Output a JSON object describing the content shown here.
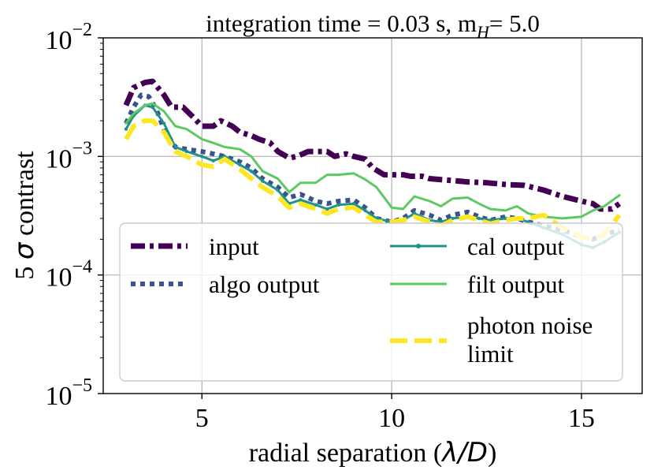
{
  "chart_data": {
    "type": "line",
    "title_main": "integration time = 0.03 s, m",
    "title_sub": "H",
    "title_tail": "= 5.0",
    "xlabel_prefix": "radial separation (",
    "xlabel_math": "λ/D",
    "xlabel_suffix": ")",
    "ylabel_prefix": "5 ",
    "ylabel_math": "σ",
    "ylabel_suffix": " contrast",
    "xlim": [
      2.4,
      16.6
    ],
    "ylim_log10": [
      -5,
      -2
    ],
    "yscale": "log",
    "grid": true,
    "legend_position": "lower-center",
    "x_ticks": [
      {
        "value": 5,
        "label": "5"
      },
      {
        "value": 10,
        "label": "10"
      },
      {
        "value": 15,
        "label": "15"
      }
    ],
    "y_ticks": [
      {
        "exp": -2,
        "base": "10",
        "sup": "−2"
      },
      {
        "exp": -3,
        "base": "10",
        "sup": "−3"
      },
      {
        "exp": -4,
        "base": "10",
        "sup": "−4"
      },
      {
        "exp": -5,
        "base": "10",
        "sup": "−5"
      }
    ],
    "series": [
      {
        "name": "input",
        "color": "#440154",
        "style": "dashdot",
        "width": 7,
        "points": [
          [
            3.0,
            0.0027
          ],
          [
            3.2,
            0.0038
          ],
          [
            3.5,
            0.0042
          ],
          [
            3.7,
            0.0043
          ],
          [
            4.0,
            0.0033
          ],
          [
            4.2,
            0.0026
          ],
          [
            4.5,
            0.0026
          ],
          [
            4.8,
            0.0021
          ],
          [
            5.0,
            0.0018
          ],
          [
            5.3,
            0.0018
          ],
          [
            5.5,
            0.002
          ],
          [
            5.8,
            0.0018
          ],
          [
            6.0,
            0.0016
          ],
          [
            6.3,
            0.0015
          ],
          [
            6.5,
            0.0014
          ],
          [
            6.8,
            0.0013
          ],
          [
            7.0,
            0.0011
          ],
          [
            7.3,
            0.00097
          ],
          [
            7.5,
            0.001
          ],
          [
            7.8,
            0.0011
          ],
          [
            8.0,
            0.0011
          ],
          [
            8.3,
            0.0011
          ],
          [
            8.5,
            0.001
          ],
          [
            8.8,
            0.00105
          ],
          [
            9.0,
            0.001
          ],
          [
            9.3,
            0.00095
          ],
          [
            9.5,
            0.0008
          ],
          [
            9.8,
            0.0007
          ],
          [
            10.0,
            0.0007
          ],
          [
            10.3,
            0.0007
          ],
          [
            10.5,
            0.00068
          ],
          [
            10.8,
            0.00068
          ],
          [
            11.0,
            0.00065
          ],
          [
            11.5,
            0.00063
          ],
          [
            12.0,
            0.00061
          ],
          [
            12.5,
            0.0006
          ],
          [
            13.0,
            0.00058
          ],
          [
            13.5,
            0.00057
          ],
          [
            14.0,
            0.00052
          ],
          [
            14.5,
            0.00046
          ],
          [
            15.0,
            0.00042
          ],
          [
            15.3,
            0.0004
          ],
          [
            15.5,
            0.00036
          ],
          [
            15.8,
            0.00036
          ],
          [
            16.0,
            0.0004
          ]
        ]
      },
      {
        "name": "algo output",
        "color": "#3b528b",
        "style": "dotted",
        "width": 6,
        "points": [
          [
            3.0,
            0.0019
          ],
          [
            3.2,
            0.0026
          ],
          [
            3.4,
            0.0033
          ],
          [
            3.6,
            0.0032
          ],
          [
            3.8,
            0.0025
          ],
          [
            4.0,
            0.0017
          ],
          [
            4.3,
            0.0012
          ],
          [
            4.6,
            0.00115
          ],
          [
            5.0,
            0.0011
          ],
          [
            5.3,
            0.00105
          ],
          [
            5.6,
            0.001
          ],
          [
            6.0,
            0.0009
          ],
          [
            6.3,
            0.0008
          ],
          [
            6.6,
            0.00065
          ],
          [
            7.0,
            0.00055
          ],
          [
            7.3,
            0.00045
          ],
          [
            7.6,
            0.00048
          ],
          [
            8.0,
            0.00042
          ],
          [
            8.3,
            0.0004
          ],
          [
            8.6,
            0.00042
          ],
          [
            9.0,
            0.00043
          ],
          [
            9.3,
            0.00037
          ],
          [
            9.6,
            0.0003
          ],
          [
            10.0,
            0.00028
          ],
          [
            10.3,
            0.0003
          ],
          [
            10.6,
            0.00035
          ],
          [
            11.0,
            0.00032
          ],
          [
            11.3,
            0.00029
          ],
          [
            11.6,
            0.00032
          ],
          [
            12.0,
            0.00034
          ],
          [
            12.3,
            0.00031
          ],
          [
            12.6,
            0.00029
          ],
          [
            13.0,
            0.00031
          ],
          [
            13.3,
            0.0003
          ],
          [
            13.6,
            0.00028
          ],
          [
            14.0,
            0.00026
          ],
          [
            14.5,
            0.00024
          ],
          [
            15.0,
            0.00021
          ],
          [
            15.3,
            0.0002
          ],
          [
            15.6,
            0.00022
          ],
          [
            16.0,
            0.00024
          ]
        ]
      },
      {
        "name": "cal output",
        "color": "#21918c",
        "style": "marker-line",
        "width": 3,
        "points": [
          [
            3.0,
            0.0017
          ],
          [
            3.2,
            0.0022
          ],
          [
            3.5,
            0.0027
          ],
          [
            3.7,
            0.0026
          ],
          [
            4.0,
            0.0019
          ],
          [
            4.3,
            0.0012
          ],
          [
            4.6,
            0.0011
          ],
          [
            5.0,
            0.001
          ],
          [
            5.3,
            0.00092
          ],
          [
            5.6,
            0.001
          ],
          [
            6.0,
            0.00085
          ],
          [
            6.3,
            0.00075
          ],
          [
            6.6,
            0.00062
          ],
          [
            7.0,
            0.00052
          ],
          [
            7.3,
            0.0004
          ],
          [
            7.6,
            0.00043
          ],
          [
            8.0,
            0.00039
          ],
          [
            8.3,
            0.00036
          ],
          [
            8.6,
            0.00039
          ],
          [
            9.0,
            0.0004
          ],
          [
            9.3,
            0.00035
          ],
          [
            9.6,
            0.0003
          ],
          [
            10.0,
            0.00028
          ],
          [
            10.3,
            0.00029
          ],
          [
            10.6,
            0.00033
          ],
          [
            11.0,
            0.00029
          ],
          [
            11.3,
            0.00028
          ],
          [
            11.6,
            0.0003
          ],
          [
            12.0,
            0.00031
          ],
          [
            12.3,
            0.0003
          ],
          [
            12.6,
            0.00029
          ],
          [
            13.0,
            0.0003
          ],
          [
            13.3,
            0.0003
          ],
          [
            13.6,
            0.00028
          ],
          [
            14.0,
            0.00025
          ],
          [
            14.5,
            0.00022
          ],
          [
            15.0,
            0.00018
          ],
          [
            15.3,
            0.00017
          ],
          [
            15.6,
            0.00019
          ],
          [
            16.0,
            0.00023
          ]
        ]
      },
      {
        "name": "filt output",
        "color": "#5ec962",
        "style": "solid",
        "width": 3,
        "points": [
          [
            3.0,
            0.0019
          ],
          [
            3.2,
            0.0023
          ],
          [
            3.5,
            0.0027
          ],
          [
            3.7,
            0.0028
          ],
          [
            4.0,
            0.0024
          ],
          [
            4.3,
            0.0018
          ],
          [
            4.6,
            0.0017
          ],
          [
            5.0,
            0.0014
          ],
          [
            5.3,
            0.0013
          ],
          [
            5.6,
            0.0012
          ],
          [
            6.0,
            0.00115
          ],
          [
            6.3,
            0.001
          ],
          [
            6.6,
            0.00075
          ],
          [
            7.0,
            0.00065
          ],
          [
            7.3,
            0.0005
          ],
          [
            7.6,
            0.0006
          ],
          [
            8.0,
            0.0006
          ],
          [
            8.3,
            0.0007
          ],
          [
            8.6,
            0.0007
          ],
          [
            9.0,
            0.00072
          ],
          [
            9.3,
            0.00064
          ],
          [
            9.6,
            0.00055
          ],
          [
            10.0,
            0.00037
          ],
          [
            10.3,
            0.00036
          ],
          [
            10.6,
            0.00046
          ],
          [
            11.0,
            0.00042
          ],
          [
            11.3,
            0.00038
          ],
          [
            11.6,
            0.00044
          ],
          [
            12.0,
            0.00045
          ],
          [
            12.3,
            0.0004
          ],
          [
            12.6,
            0.00036
          ],
          [
            13.0,
            0.00035
          ],
          [
            13.3,
            0.00038
          ],
          [
            13.6,
            0.00033
          ],
          [
            14.0,
            0.00031
          ],
          [
            14.5,
            0.0003
          ],
          [
            15.0,
            0.00031
          ],
          [
            15.3,
            0.00035
          ],
          [
            15.6,
            0.00038
          ],
          [
            16.0,
            0.00047
          ]
        ]
      },
      {
        "name": "photon noise limit",
        "label_line1": "photon noise",
        "label_line2": "limit",
        "color": "#fde725",
        "style": "dashed",
        "width": 6,
        "points": [
          [
            3.0,
            0.0014
          ],
          [
            3.2,
            0.0018
          ],
          [
            3.5,
            0.002
          ],
          [
            3.7,
            0.002
          ],
          [
            4.0,
            0.0016
          ],
          [
            4.3,
            0.0011
          ],
          [
            4.6,
            0.001
          ],
          [
            5.0,
            0.00085
          ],
          [
            5.3,
            0.00082
          ],
          [
            5.6,
            0.00095
          ],
          [
            6.0,
            0.00078
          ],
          [
            6.3,
            0.00065
          ],
          [
            6.6,
            0.00055
          ],
          [
            7.0,
            0.00046
          ],
          [
            7.3,
            0.00037
          ],
          [
            7.6,
            0.0004
          ],
          [
            8.0,
            0.00036
          ],
          [
            8.3,
            0.00033
          ],
          [
            8.6,
            0.00036
          ],
          [
            9.0,
            0.00037
          ],
          [
            9.3,
            0.00032
          ],
          [
            9.6,
            0.00028
          ],
          [
            10.0,
            0.00028
          ],
          [
            10.3,
            0.00029
          ],
          [
            10.6,
            0.00031
          ],
          [
            11.0,
            0.00028
          ],
          [
            11.3,
            0.00026
          ],
          [
            11.6,
            0.00029
          ],
          [
            12.0,
            0.00031
          ],
          [
            12.3,
            0.00029
          ],
          [
            12.6,
            0.00027
          ],
          [
            13.0,
            0.00029
          ],
          [
            13.3,
            0.0003
          ],
          [
            13.6,
            0.0003
          ],
          [
            14.0,
            0.00032
          ],
          [
            14.5,
            0.00025
          ],
          [
            15.0,
            0.00021
          ],
          [
            15.3,
            0.0002
          ],
          [
            15.6,
            0.00022
          ],
          [
            16.0,
            0.00032
          ]
        ]
      }
    ]
  }
}
